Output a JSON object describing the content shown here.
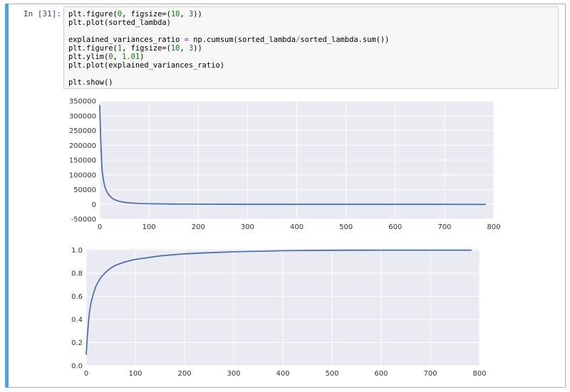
{
  "cell": {
    "prompt": "In [31]:",
    "code_lines": [
      [
        {
          "t": "plt.figure("
        },
        {
          "t": "0",
          "c": "num"
        },
        {
          "t": ", figsize=("
        },
        {
          "t": "10",
          "c": "num"
        },
        {
          "t": ", "
        },
        {
          "t": "3",
          "c": "num"
        },
        {
          "t": "))"
        }
      ],
      [
        {
          "t": "plt.plot(sorted_lambda)"
        }
      ],
      [],
      [
        {
          "t": "explained_variances_ratio "
        },
        {
          "t": "=",
          "c": "op"
        },
        {
          "t": " np.cumsum(sorted_lambda"
        },
        {
          "t": "/",
          "c": "op"
        },
        {
          "t": "sorted_lambda.sum())"
        }
      ],
      [
        {
          "t": "plt.figure("
        },
        {
          "t": "1",
          "c": "num"
        },
        {
          "t": ", figsize=("
        },
        {
          "t": "10",
          "c": "num"
        },
        {
          "t": ", "
        },
        {
          "t": "3",
          "c": "num"
        },
        {
          "t": "))"
        }
      ],
      [
        {
          "t": "plt.ylim("
        },
        {
          "t": "0",
          "c": "num"
        },
        {
          "t": ", "
        },
        {
          "t": "1.01",
          "c": "num"
        },
        {
          "t": ")"
        }
      ],
      [
        {
          "t": "plt.plot(explained_variances_ratio)"
        }
      ],
      [],
      [
        {
          "t": "plt.show()"
        }
      ]
    ]
  },
  "colors": {
    "plot_background": "#eaeaf2",
    "grid": "#ffffff",
    "line": "#4c72b0",
    "cell_accent": "#42a5f5",
    "prompt": "#303f9f",
    "code_number": "#008800",
    "code_operator": "#aa22ff"
  },
  "chart_data": [
    {
      "type": "line",
      "title": "",
      "xlabel": "",
      "ylabel": "",
      "xlim": [
        0,
        800
      ],
      "ylim": [
        -50000,
        350000
      ],
      "x_ticks": [
        0,
        100,
        200,
        300,
        400,
        500,
        600,
        700,
        800
      ],
      "y_ticks": [
        -50000,
        0,
        50000,
        100000,
        150000,
        200000,
        250000,
        300000,
        350000
      ],
      "grid": true,
      "series": [
        {
          "x": [
            0,
            1,
            2,
            3,
            4,
            5,
            6,
            8,
            10,
            13,
            16,
            20,
            25,
            30,
            40,
            50,
            60,
            80,
            100,
            150,
            200,
            300,
            400,
            500,
            600,
            700,
            783
          ],
          "values": [
            335000,
            270000,
            215000,
            175000,
            140000,
            110000,
            100000,
            78000,
            62000,
            48000,
            38000,
            29000,
            21000,
            16000,
            10000,
            7000,
            5000,
            3000,
            2000,
            1000,
            500,
            200,
            100,
            50,
            20,
            10,
            0
          ]
        }
      ]
    },
    {
      "type": "line",
      "title": "",
      "xlabel": "",
      "ylabel": "",
      "xlim": [
        0,
        800
      ],
      "ylim": [
        0,
        1.01
      ],
      "x_ticks": [
        0,
        100,
        200,
        300,
        400,
        500,
        600,
        700,
        800
      ],
      "y_ticks": [
        0.0,
        0.2,
        0.4,
        0.6,
        0.8,
        1.0
      ],
      "grid": true,
      "series": [
        {
          "x": [
            0,
            2,
            4,
            6,
            8,
            10,
            15,
            20,
            25,
            30,
            40,
            50,
            60,
            80,
            100,
            150,
            200,
            250,
            300,
            400,
            500,
            600,
            700,
            783
          ],
          "values": [
            0.1,
            0.24,
            0.35,
            0.44,
            0.5,
            0.55,
            0.63,
            0.69,
            0.73,
            0.765,
            0.81,
            0.845,
            0.87,
            0.9,
            0.92,
            0.95,
            0.968,
            0.978,
            0.986,
            0.995,
            0.999,
            1.0,
            1.0,
            1.0
          ]
        }
      ]
    }
  ]
}
